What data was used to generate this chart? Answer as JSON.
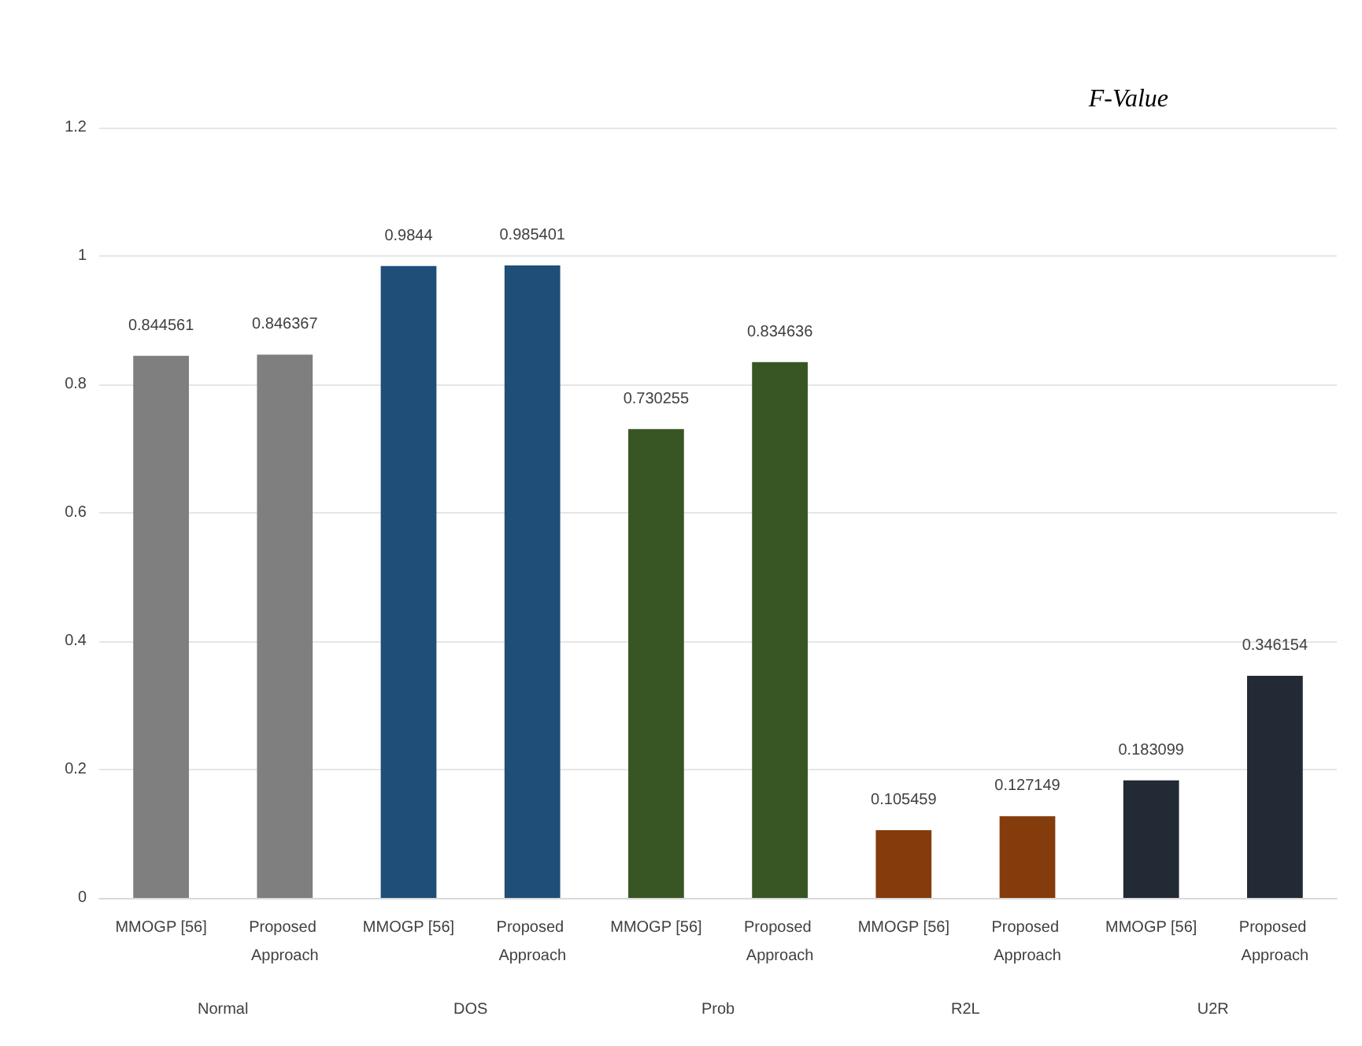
{
  "chart_data": {
    "type": "bar",
    "title": "F-Value",
    "categories": [
      "MMOGP [56]",
      "Proposed Approach",
      "MMOGP [56]",
      "Proposed Approach",
      "MMOGP [56]",
      "Proposed Approach",
      "MMOGP [56]",
      "Proposed Approach",
      "MMOGP [56]",
      "Proposed Approach"
    ],
    "values": [
      0.844561,
      0.846367,
      0.9844,
      0.985401,
      0.730255,
      0.834636,
      0.105459,
      0.127149,
      0.183099,
      0.346154
    ],
    "colors": [
      "#7f7f7f",
      "#7f7f7f",
      "#1f4e79",
      "#1f4e79",
      "#375623",
      "#375623",
      "#843c0c",
      "#843c0c",
      "#222a35",
      "#222a35"
    ],
    "annotations": [
      "Normal",
      "DOS",
      "Prob",
      "R2L",
      "U2R"
    ],
    "ylim": [
      0,
      1.2
    ],
    "yticks": [
      0,
      0.2,
      0.4,
      0.6,
      0.8,
      1,
      1.2
    ],
    "grid": "y",
    "data_labels": true
  }
}
